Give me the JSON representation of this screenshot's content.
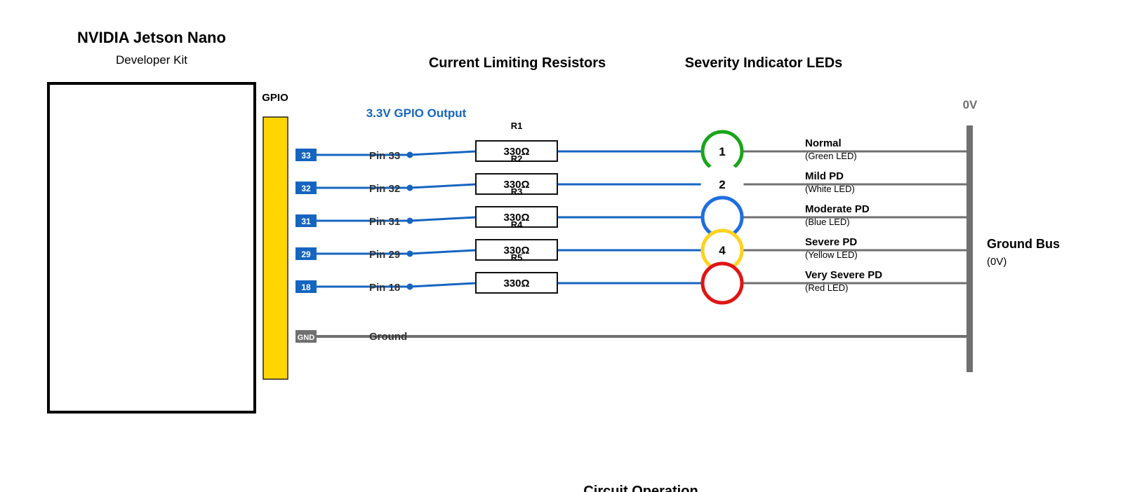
{
  "board": {
    "title": "NVIDIA Jetson Nano",
    "subtitle": "Developer Kit",
    "gpio_label": "GPIO"
  },
  "headers": {
    "resistors": "Current Limiting Resistors",
    "leds": "Severity Indicator LEDs",
    "gpio_output": "3.3V GPIO Output",
    "zero_v": "0V",
    "circuit_operation": "Circuit Operation"
  },
  "ground": {
    "badge": "GND",
    "label": "Ground",
    "bus_label": "Ground Bus",
    "bus_sub": "(0V)"
  },
  "colors": {
    "wire": "#1565c0",
    "ground": "#707070",
    "header": "#ffd600",
    "green": "#1aa51a",
    "white": "#ffffff",
    "blue": "#1e6ee0",
    "yellow": "#ffd21f",
    "red": "#e01515"
  },
  "channels": [
    {
      "pin_badge": "33",
      "pin_label": "Pin 33",
      "resistor_name": "R1",
      "resistor_value": "330Ω",
      "led_number": "1",
      "led_color_key": "green",
      "severity": "Normal",
      "led_desc": "(Green LED)"
    },
    {
      "pin_badge": "32",
      "pin_label": "Pin 32",
      "resistor_name": "R2",
      "resistor_value": "330Ω",
      "led_number": "2",
      "led_color_key": "white",
      "severity": "Mild PD",
      "led_desc": "(White LED)"
    },
    {
      "pin_badge": "31",
      "pin_label": "Pin 31",
      "resistor_name": "R3",
      "resistor_value": "330Ω",
      "led_number": "",
      "led_color_key": "blue",
      "severity": "Moderate PD",
      "led_desc": "(Blue LED)"
    },
    {
      "pin_badge": "29",
      "pin_label": "Pin 29",
      "resistor_name": "R4",
      "resistor_value": "330Ω",
      "led_number": "4",
      "led_color_key": "yellow",
      "severity": "Severe PD",
      "led_desc": "(Yellow LED)"
    },
    {
      "pin_badge": "18",
      "pin_label": "Pin 18",
      "resistor_name": "R5",
      "resistor_value": "330Ω",
      "led_number": "",
      "led_color_key": "red",
      "severity": "Very Severe PD",
      "led_desc": "(Red LED)"
    }
  ]
}
